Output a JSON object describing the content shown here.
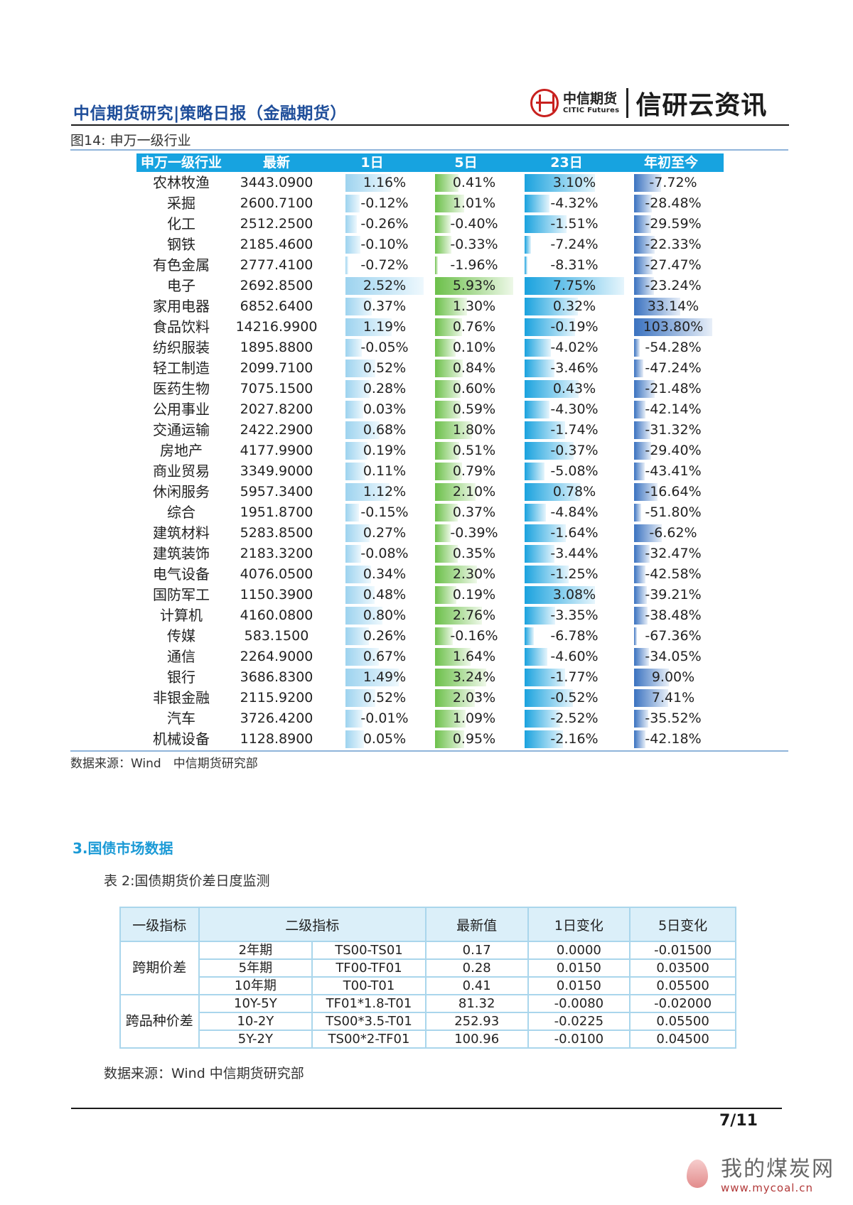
{
  "header": {
    "title": "中信期货研究|策略日报（金融期货）",
    "logo_cn": "中信期货",
    "logo_en": "CITIC Futures",
    "brand": "信研云资讯"
  },
  "figure": {
    "caption": "图14: 申万一级行业",
    "columns": [
      "申万一级行业",
      "最新",
      "1日",
      "5日",
      "23日",
      "年初至今"
    ],
    "rows": [
      {
        "name": "农林牧渔",
        "latest": "3443.0900",
        "d1": "1.16%",
        "d5": "0.41%",
        "d23": "3.10%",
        "ytd": "-7.72%"
      },
      {
        "name": "采掘",
        "latest": "2600.7100",
        "d1": "-0.12%",
        "d5": "1.01%",
        "d23": "-4.32%",
        "ytd": "-28.48%"
      },
      {
        "name": "化工",
        "latest": "2512.2500",
        "d1": "-0.26%",
        "d5": "-0.40%",
        "d23": "-1.51%",
        "ytd": "-29.59%"
      },
      {
        "name": "钢铁",
        "latest": "2185.4600",
        "d1": "-0.10%",
        "d5": "-0.33%",
        "d23": "-7.24%",
        "ytd": "-22.33%"
      },
      {
        "name": "有色金属",
        "latest": "2777.4100",
        "d1": "-0.72%",
        "d5": "-1.96%",
        "d23": "-8.31%",
        "ytd": "-27.47%"
      },
      {
        "name": "电子",
        "latest": "2692.8500",
        "d1": "2.52%",
        "d5": "5.93%",
        "d23": "7.75%",
        "ytd": "-23.24%"
      },
      {
        "name": "家用电器",
        "latest": "6852.6400",
        "d1": "0.37%",
        "d5": "1.30%",
        "d23": "0.32%",
        "ytd": "33.14%"
      },
      {
        "name": "食品饮料",
        "latest": "14216.9900",
        "d1": "1.19%",
        "d5": "0.76%",
        "d23": "-0.19%",
        "ytd": "103.80%"
      },
      {
        "name": "纺织服装",
        "latest": "1895.8800",
        "d1": "-0.05%",
        "d5": "0.10%",
        "d23": "-4.02%",
        "ytd": "-54.28%"
      },
      {
        "name": "轻工制造",
        "latest": "2099.7100",
        "d1": "0.52%",
        "d5": "0.84%",
        "d23": "-3.46%",
        "ytd": "-47.24%"
      },
      {
        "name": "医药生物",
        "latest": "7075.1500",
        "d1": "0.28%",
        "d5": "0.60%",
        "d23": "0.43%",
        "ytd": "-21.48%"
      },
      {
        "name": "公用事业",
        "latest": "2027.8200",
        "d1": "0.03%",
        "d5": "0.59%",
        "d23": "-4.30%",
        "ytd": "-42.14%"
      },
      {
        "name": "交通运输",
        "latest": "2422.2900",
        "d1": "0.68%",
        "d5": "1.80%",
        "d23": "-1.74%",
        "ytd": "-31.32%"
      },
      {
        "name": "房地产",
        "latest": "4177.9900",
        "d1": "0.19%",
        "d5": "0.51%",
        "d23": "-0.37%",
        "ytd": "-29.40%"
      },
      {
        "name": "商业贸易",
        "latest": "3349.9000",
        "d1": "0.11%",
        "d5": "0.79%",
        "d23": "-5.08%",
        "ytd": "-43.41%"
      },
      {
        "name": "休闲服务",
        "latest": "5957.3400",
        "d1": "1.12%",
        "d5": "2.10%",
        "d23": "0.78%",
        "ytd": "-16.64%"
      },
      {
        "name": "综合",
        "latest": "1951.8700",
        "d1": "-0.15%",
        "d5": "0.37%",
        "d23": "-4.84%",
        "ytd": "-51.80%"
      },
      {
        "name": "建筑材料",
        "latest": "5283.8500",
        "d1": "0.27%",
        "d5": "-0.39%",
        "d23": "-1.64%",
        "ytd": "-6.62%"
      },
      {
        "name": "建筑装饰",
        "latest": "2183.3200",
        "d1": "-0.08%",
        "d5": "0.35%",
        "d23": "-3.44%",
        "ytd": "-32.47%"
      },
      {
        "name": "电气设备",
        "latest": "4076.0500",
        "d1": "0.34%",
        "d5": "2.30%",
        "d23": "-1.25%",
        "ytd": "-42.58%"
      },
      {
        "name": "国防军工",
        "latest": "1150.3900",
        "d1": "0.48%",
        "d5": "0.19%",
        "d23": "3.08%",
        "ytd": "-39.21%"
      },
      {
        "name": "计算机",
        "latest": "4160.0800",
        "d1": "0.80%",
        "d5": "2.76%",
        "d23": "-3.35%",
        "ytd": "-38.48%"
      },
      {
        "name": "传媒",
        "latest": "583.1500",
        "d1": "0.26%",
        "d5": "-0.16%",
        "d23": "-6.78%",
        "ytd": "-67.36%"
      },
      {
        "name": "通信",
        "latest": "2264.9000",
        "d1": "0.67%",
        "d5": "1.64%",
        "d23": "-4.60%",
        "ytd": "-34.05%"
      },
      {
        "name": "银行",
        "latest": "3686.8300",
        "d1": "1.49%",
        "d5": "3.24%",
        "d23": "-1.77%",
        "ytd": "9.00%"
      },
      {
        "name": "非银金融",
        "latest": "2115.9200",
        "d1": "0.52%",
        "d5": "2.03%",
        "d23": "-0.52%",
        "ytd": "7.41%"
      },
      {
        "name": "汽车",
        "latest": "3726.4200",
        "d1": "-0.01%",
        "d5": "1.09%",
        "d23": "-2.52%",
        "ytd": "-35.52%"
      },
      {
        "name": "机械设备",
        "latest": "1128.8900",
        "d1": "0.05%",
        "d5": "0.95%",
        "d23": "-2.16%",
        "ytd": "-42.18%"
      }
    ],
    "source": "数据来源：Wind　中信期货研究部"
  },
  "section": {
    "title": "3.国债市场数据"
  },
  "spread_table": {
    "caption": "表 2:国债期货价差日度监测",
    "headers": [
      "一级指标",
      "二级指标",
      "最新值",
      "1日变化",
      "5日变化"
    ],
    "groups": [
      {
        "label": "跨期价差",
        "rows": [
          {
            "tenor": "2年期",
            "contract": "TS00-TS01",
            "latest": "0.17",
            "d1": "0.0000",
            "d5": "-0.01500"
          },
          {
            "tenor": "5年期",
            "contract": "TF00-TF01",
            "latest": "0.28",
            "d1": "0.0150",
            "d5": "0.03500"
          },
          {
            "tenor": "10年期",
            "contract": "T00-T01",
            "latest": "0.41",
            "d1": "0.0150",
            "d5": "0.05500"
          }
        ]
      },
      {
        "label": "跨品种价差",
        "rows": [
          {
            "tenor": "10Y-5Y",
            "contract": "TF01*1.8-T01",
            "latest": "81.32",
            "d1": "-0.0080",
            "d5": "-0.02000"
          },
          {
            "tenor": "10-2Y",
            "contract": "TS00*3.5-T01",
            "latest": "252.93",
            "d1": "-0.0225",
            "d5": "0.05500"
          },
          {
            "tenor": "5Y-2Y",
            "contract": "TS00*2-TF01",
            "latest": "100.96",
            "d1": "-0.0100",
            "d5": "0.04500"
          }
        ]
      }
    ],
    "source": "数据来源：Wind 中信期货研究部"
  },
  "footer": {
    "page": "7/11"
  },
  "watermark": {
    "cn": "我的煤炭网",
    "en": "www.mycoal.cn"
  },
  "colors": {
    "accent": "#17a3e0",
    "title_blue": "#1f4e9a",
    "bar_d1": "#9dd3ef",
    "bar_d5": "#6cc04a",
    "bar_d23": "#1aa2de",
    "bar_ytd": "#3a72c0"
  }
}
